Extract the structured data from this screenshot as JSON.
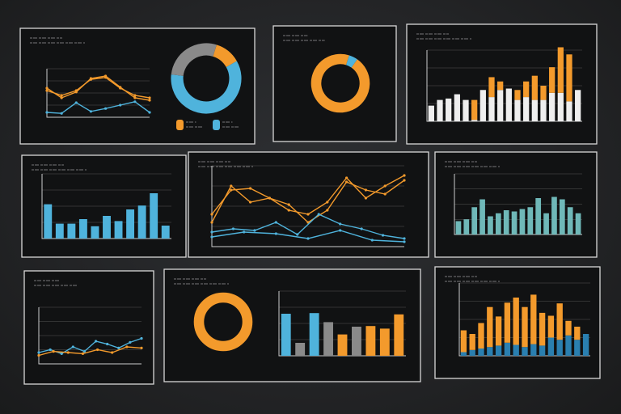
{
  "colors": {
    "background": "#262729",
    "panel": "#111213",
    "frame": "#d8d8d8",
    "orange": "#f39a2c",
    "blue": "#4fb3dc",
    "teal": "#6fb8b8",
    "white": "#eeeeee",
    "gray": "#8a8a8a",
    "navy": "#2a7fb0"
  },
  "panels": [
    {
      "id": "p1",
      "kind": "line-donut",
      "lines": [
        {
          "color": "orange",
          "values": [
            60,
            40,
            52,
            80,
            85,
            62,
            40,
            35
          ]
        },
        {
          "color": "orange",
          "values": [
            55,
            45,
            55,
            78,
            82,
            60,
            45,
            40
          ]
        },
        {
          "color": "blue",
          "values": [
            10,
            8,
            30,
            12,
            18,
            25,
            32,
            10
          ]
        }
      ],
      "donut": {
        "segments": [
          {
            "color": "orange",
            "value": 12
          },
          {
            "color": "blue",
            "value": 60
          },
          {
            "color": "gray",
            "value": 28
          }
        ]
      },
      "legend": [
        "orange",
        "blue"
      ]
    },
    {
      "id": "p2",
      "kind": "donut",
      "donut": {
        "segments": [
          {
            "color": "blue",
            "value": 5
          },
          {
            "color": "orange",
            "value": 95
          }
        ]
      }
    },
    {
      "id": "p3",
      "kind": "stacked-bars",
      "bars": [
        [
          22,
          0
        ],
        [
          30,
          0
        ],
        [
          32,
          0
        ],
        [
          38,
          0
        ],
        [
          30,
          0
        ],
        [
          2,
          28
        ],
        [
          44,
          0
        ],
        [
          34,
          28
        ],
        [
          44,
          12
        ],
        [
          46,
          0
        ],
        [
          30,
          14
        ],
        [
          34,
          22
        ],
        [
          30,
          34
        ],
        [
          30,
          20
        ],
        [
          40,
          36
        ],
        [
          40,
          64
        ],
        [
          28,
          66
        ],
        [
          44,
          0
        ]
      ],
      "colors": [
        "white",
        "orange"
      ]
    },
    {
      "id": "p4",
      "kind": "bars",
      "color": "blue",
      "values": [
        53,
        23,
        23,
        30,
        19,
        35,
        27,
        45,
        51,
        70,
        20
      ]
    },
    {
      "id": "p5",
      "kind": "lines",
      "lines": [
        {
          "color": "orange",
          "values": [
            30,
            75,
            55,
            60,
            45,
            40,
            55,
            85,
            60,
            75,
            88
          ]
        },
        {
          "color": "orange",
          "values": [
            40,
            70,
            72,
            60,
            52,
            30,
            45,
            80,
            70,
            65,
            82
          ]
        },
        {
          "color": "blue",
          "values": [
            18,
            22,
            20,
            30,
            15,
            40,
            28,
            22,
            14,
            10
          ]
        },
        {
          "color": "blue",
          "values": [
            12,
            18,
            16,
            10,
            20,
            8,
            6
          ]
        }
      ]
    },
    {
      "id": "p6",
      "kind": "bars",
      "color": "teal",
      "values": [
        22,
        25,
        45,
        58,
        30,
        35,
        40,
        38,
        42,
        45,
        60,
        35,
        62,
        58,
        45,
        35
      ]
    },
    {
      "id": "p7",
      "kind": "lines",
      "lines": [
        {
          "color": "blue",
          "values": [
            20,
            25,
            18,
            30,
            22,
            40,
            35,
            28,
            38,
            45
          ]
        },
        {
          "color": "orange",
          "values": [
            15,
            22,
            20,
            18,
            25,
            20,
            30,
            28
          ]
        }
      ]
    },
    {
      "id": "p8",
      "kind": "donut-bars",
      "donut": {
        "segments": [
          {
            "color": "orange",
            "value": 100
          }
        ]
      },
      "bars": [
        {
          "color": "blue",
          "value": 65
        },
        {
          "color": "gray",
          "value": 20
        },
        {
          "color": "blue",
          "value": 66
        },
        {
          "color": "gray",
          "value": 52
        },
        {
          "color": "orange",
          "value": 33
        },
        {
          "color": "gray",
          "value": 45
        },
        {
          "color": "orange",
          "value": 46
        },
        {
          "color": "orange",
          "value": 42
        },
        {
          "color": "orange",
          "value": 64
        }
      ]
    },
    {
      "id": "p9",
      "kind": "stacked-bars",
      "bars": [
        [
          5,
          30
        ],
        [
          8,
          22
        ],
        [
          10,
          35
        ],
        [
          12,
          55
        ],
        [
          14,
          40
        ],
        [
          18,
          55
        ],
        [
          15,
          65
        ],
        [
          12,
          55
        ],
        [
          16,
          68
        ],
        [
          14,
          45
        ],
        [
          25,
          30
        ],
        [
          22,
          50
        ],
        [
          28,
          20
        ],
        [
          22,
          18
        ],
        [
          30,
          0
        ]
      ],
      "colors": [
        "navy",
        "orange"
      ]
    }
  ]
}
